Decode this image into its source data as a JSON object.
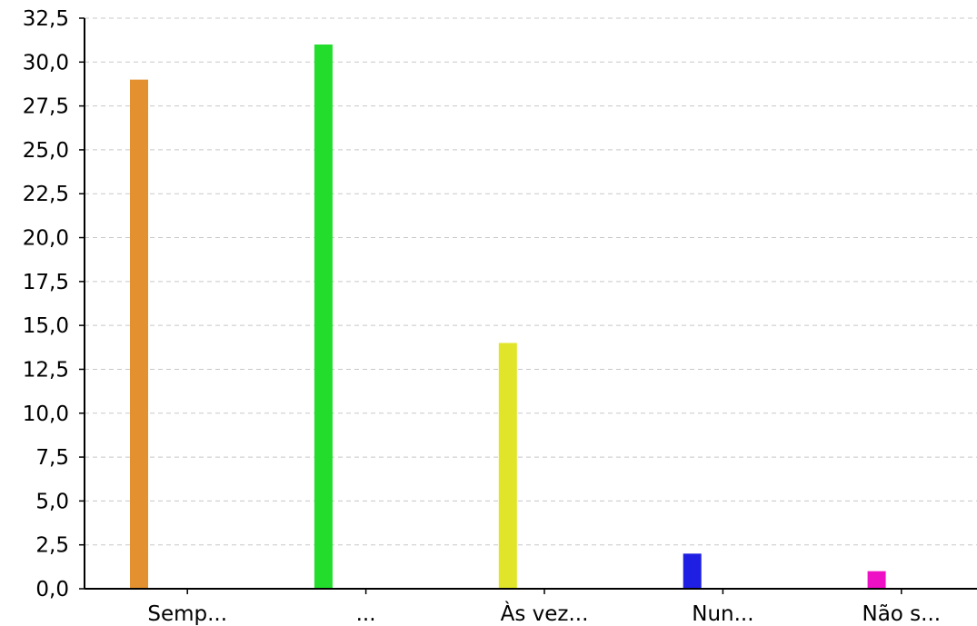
{
  "chart_data": {
    "type": "bar",
    "categories": [
      "Semp...",
      "...",
      "Às vez...",
      "Nun...",
      "Não s..."
    ],
    "values": [
      29,
      31,
      14,
      2,
      1
    ],
    "colors": [
      "#E39130",
      "#22DD2C",
      "#E0E52A",
      "#1F1FE3",
      "#EE10C4"
    ],
    "ylim": [
      0,
      32.5
    ],
    "yticks": [
      "0,0",
      "2,5",
      "5,0",
      "7,5",
      "10,0",
      "12,5",
      "15,0",
      "17,5",
      "20,0",
      "22,5",
      "25,0",
      "27,5",
      "30,0",
      "32,5"
    ],
    "grid": true
  }
}
